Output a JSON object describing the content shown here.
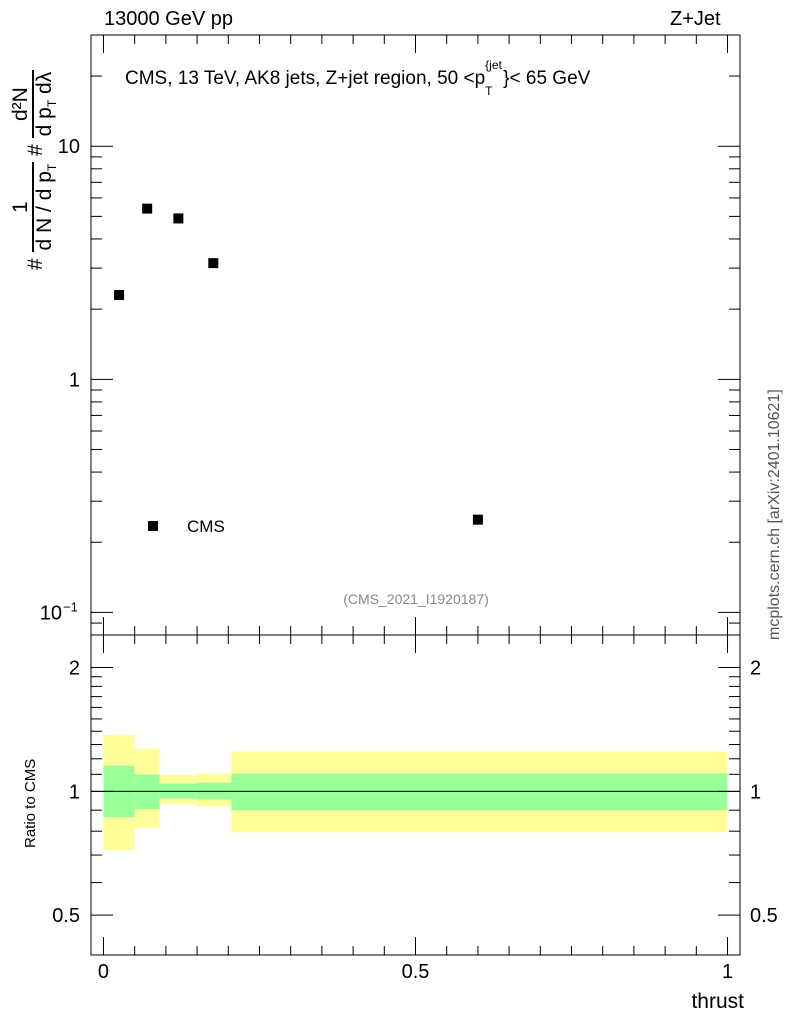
{
  "header": {
    "left_text": "13000 GeV pp",
    "right_text": "Z+Jet"
  },
  "plot_title": {
    "prefix": "CMS, 13 TeV, AK8 jets, Z+jet region, 50 <p",
    "sup": "{jet",
    "sub": "T",
    "suffix": "}< 65 GeV"
  },
  "y_axis_label": {
    "hash1": "#",
    "one": "1",
    "dN": "d N / d p",
    "T": "T",
    "hash2": "#",
    "numerator": "d²N",
    "denominator": "d p",
    "den_sub": "T",
    "lambda": " dλ"
  },
  "legend": {
    "label": "CMS"
  },
  "analysis_tag": "(CMS_2021_I1920187)",
  "side_label": "mcplots.cern.ch [arXiv:2401.10621]",
  "ratio_ylabel": "Ratio to CMS",
  "x_axis_label": "thrust",
  "colors": {
    "marker": "#000000",
    "band_inner": "#99ff99",
    "band_outer": "#ffff99",
    "tag_text": "#888888"
  },
  "chart_data": [
    {
      "type": "scatter",
      "name": "main",
      "yscale": "log",
      "ylim": [
        0.08,
        30
      ],
      "xlim": [
        -0.02,
        1.02
      ],
      "xlabel": "thrust",
      "yticks": [
        {
          "v": 0.1,
          "label": "10",
          "sup": "−1"
        },
        {
          "v": 1,
          "label": "1",
          "sup": ""
        },
        {
          "v": 10,
          "label": "10",
          "sup": ""
        }
      ],
      "series": [
        {
          "name": "CMS",
          "points": [
            {
              "x": 0.025,
              "y": 2.3
            },
            {
              "x": 0.07,
              "y": 5.4
            },
            {
              "x": 0.12,
              "y": 4.9
            },
            {
              "x": 0.176,
              "y": 3.15
            },
            {
              "x": 0.6,
              "y": 0.25
            }
          ]
        }
      ]
    },
    {
      "type": "area",
      "name": "ratio",
      "ylim": [
        0.4,
        2.4
      ],
      "yscale": "log",
      "xlim": [
        -0.02,
        1.02
      ],
      "xticks": [
        {
          "v": 0,
          "label": "0"
        },
        {
          "v": 0.5,
          "label": "0.5"
        },
        {
          "v": 1,
          "label": "1"
        }
      ],
      "yticks": [
        {
          "v": 0.5,
          "label": "0.5"
        },
        {
          "v": 1,
          "label": "1"
        },
        {
          "v": 2,
          "label": "2"
        }
      ],
      "bins": [
        {
          "lo": 0.0,
          "hi": 0.05,
          "in_lo": 0.865,
          "in_hi": 1.155,
          "out_lo": 0.72,
          "out_hi": 1.37
        },
        {
          "lo": 0.05,
          "hi": 0.09,
          "in_lo": 0.905,
          "in_hi": 1.1,
          "out_lo": 0.815,
          "out_hi": 1.27
        },
        {
          "lo": 0.09,
          "hi": 0.15,
          "in_lo": 0.96,
          "in_hi": 1.045,
          "out_lo": 0.93,
          "out_hi": 1.095
        },
        {
          "lo": 0.15,
          "hi": 0.205,
          "in_lo": 0.955,
          "in_hi": 1.05,
          "out_lo": 0.92,
          "out_hi": 1.105
        },
        {
          "lo": 0.205,
          "hi": 1.0,
          "in_lo": 0.9,
          "in_hi": 1.105,
          "out_lo": 0.795,
          "out_hi": 1.25
        }
      ],
      "reference_line": 1
    }
  ]
}
